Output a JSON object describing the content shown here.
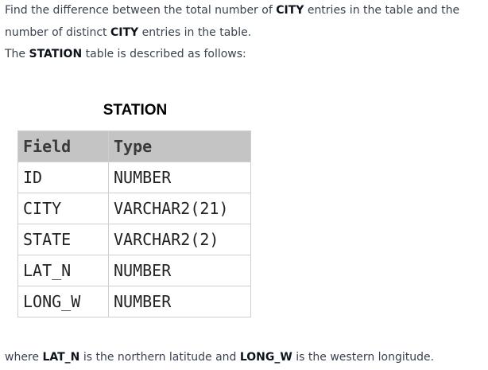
{
  "intro": {
    "t1": "Find the difference between the total number of ",
    "k1": "CITY",
    "t2": " entries in the table and the number of distinct ",
    "k2": "CITY",
    "t3": " entries in the table."
  },
  "description": {
    "t1": "The ",
    "k1": "STATION",
    "t2": " table is described as follows:"
  },
  "schema": {
    "title": "STATION",
    "headers": [
      "Field",
      "Type"
    ],
    "rows": [
      [
        "ID",
        "NUMBER"
      ],
      [
        "CITY",
        "VARCHAR2(21)"
      ],
      [
        "STATE",
        "VARCHAR2(2)"
      ],
      [
        "LAT_N",
        "NUMBER"
      ],
      [
        "LONG_W",
        "NUMBER"
      ]
    ]
  },
  "footnote": {
    "t1": "where ",
    "k1": "LAT_N",
    "t2": " is the northern latitude and ",
    "k2": "LONG_W",
    "t3": " is the western longitude."
  }
}
